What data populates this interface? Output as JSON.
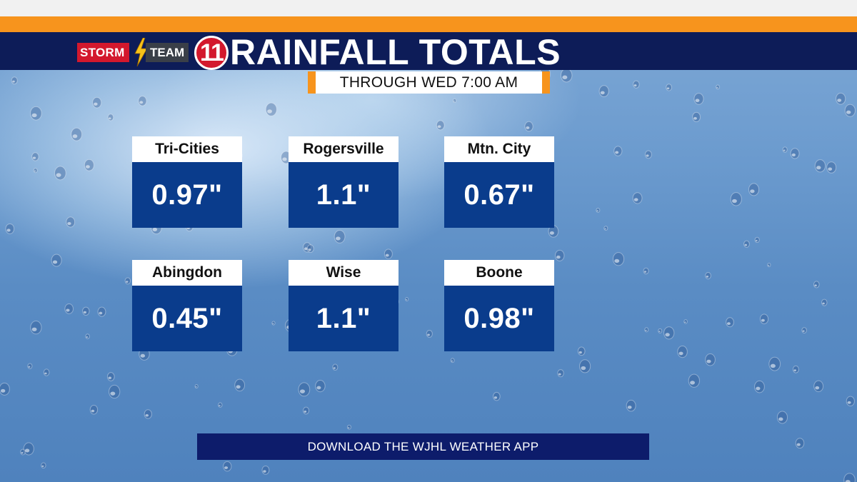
{
  "header": {
    "logo_storm": "STORM",
    "logo_team": "TEAM",
    "logo_number": "11",
    "title": "RAINFALL TOTALS",
    "subtitle": "THROUGH WED 7:00 AM"
  },
  "locations": [
    {
      "name": "Tri-Cities",
      "value": "0.97\""
    },
    {
      "name": "Rogersville",
      "value": "1.1\""
    },
    {
      "name": "Mtn. City",
      "value": "0.67\""
    },
    {
      "name": "Abingdon",
      "value": "0.45\""
    },
    {
      "name": "Wise",
      "value": "1.1\""
    },
    {
      "name": "Boone",
      "value": "0.98\""
    }
  ],
  "footer": {
    "banner": "DOWNLOAD THE WJHL WEATHER APP"
  },
  "colors": {
    "orange": "#f7941d",
    "navy": "#0d1c58",
    "value_blue": "#0a3c8c",
    "logo_red": "#d3182d",
    "bolt_yellow": "#f6c21a"
  }
}
